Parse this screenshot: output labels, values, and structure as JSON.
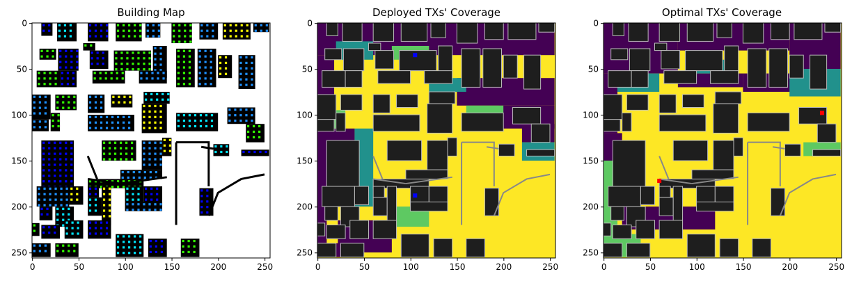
{
  "figure": {
    "background": "#ffffff"
  },
  "chart_data": [
    {
      "type": "heatmap",
      "title": "Building Map",
      "xlabel": "",
      "ylabel": "",
      "xlim": [
        0,
        255
      ],
      "ylim": [
        255,
        0
      ],
      "xticks": [
        0,
        50,
        100,
        150,
        200,
        250
      ],
      "yticks": [
        0,
        50,
        100,
        150,
        200,
        250
      ],
      "legend": "none",
      "background_color": "#ffffff",
      "building_color": "#000000",
      "marker_colors": [
        "#0000ff",
        "#1e90ff",
        "#00e5ff",
        "#33ff00",
        "#ffff00"
      ],
      "buildings": [
        [
          10,
          0,
          22,
          14
        ],
        [
          27,
          0,
          48,
          20
        ],
        [
          60,
          0,
          82,
          20
        ],
        [
          90,
          0,
          118,
          20
        ],
        [
          122,
          0,
          138,
          16
        ],
        [
          150,
          0,
          172,
          22
        ],
        [
          180,
          0,
          200,
          18
        ],
        [
          205,
          0,
          235,
          18
        ],
        [
          238,
          0,
          255,
          10
        ],
        [
          8,
          28,
          26,
          40
        ],
        [
          28,
          28,
          50,
          52
        ],
        [
          55,
          22,
          68,
          30
        ],
        [
          62,
          30,
          82,
          50
        ],
        [
          88,
          30,
          128,
          52
        ],
        [
          130,
          25,
          145,
          60
        ],
        [
          155,
          28,
          175,
          70
        ],
        [
          178,
          28,
          198,
          70
        ],
        [
          200,
          35,
          215,
          60
        ],
        [
          222,
          35,
          240,
          72
        ],
        [
          5,
          52,
          30,
          70
        ],
        [
          30,
          52,
          48,
          70
        ],
        [
          65,
          52,
          100,
          66
        ],
        [
          115,
          52,
          145,
          66
        ],
        [
          0,
          78,
          20,
          105
        ],
        [
          25,
          78,
          48,
          95
        ],
        [
          60,
          78,
          78,
          98
        ],
        [
          85,
          78,
          108,
          92
        ],
        [
          120,
          75,
          148,
          88
        ],
        [
          0,
          105,
          18,
          118
        ],
        [
          20,
          98,
          30,
          118
        ],
        [
          60,
          100,
          110,
          118
        ],
        [
          118,
          88,
          145,
          120
        ],
        [
          155,
          98,
          200,
          118
        ],
        [
          210,
          92,
          240,
          110
        ],
        [
          230,
          110,
          250,
          130
        ],
        [
          10,
          128,
          45,
          185
        ],
        [
          75,
          128,
          112,
          150
        ],
        [
          118,
          128,
          140,
          160
        ],
        [
          140,
          125,
          150,
          145
        ],
        [
          195,
          132,
          212,
          145
        ],
        [
          225,
          138,
          255,
          145
        ],
        [
          60,
          170,
          120,
          180
        ],
        [
          95,
          160,
          140,
          170
        ],
        [
          5,
          178,
          40,
          200
        ],
        [
          40,
          178,
          55,
          198
        ],
        [
          8,
          200,
          22,
          215
        ],
        [
          25,
          200,
          45,
          222
        ],
        [
          60,
          178,
          72,
          190
        ],
        [
          60,
          190,
          75,
          210
        ],
        [
          75,
          178,
          85,
          220
        ],
        [
          100,
          178,
          120,
          195
        ],
        [
          120,
          178,
          140,
          200
        ],
        [
          100,
          195,
          140,
          205
        ],
        [
          180,
          180,
          195,
          210
        ],
        [
          0,
          218,
          8,
          232
        ],
        [
          10,
          220,
          30,
          235
        ],
        [
          35,
          215,
          55,
          235
        ],
        [
          60,
          215,
          85,
          235
        ],
        [
          0,
          240,
          20,
          255
        ],
        [
          25,
          240,
          50,
          255
        ],
        [
          90,
          230,
          120,
          255
        ],
        [
          125,
          235,
          145,
          255
        ],
        [
          160,
          235,
          180,
          255
        ]
      ],
      "walls": [
        [
          [
            155,
            130
          ],
          [
            190,
            130
          ],
          [
            190,
            178
          ]
        ],
        [
          [
            155,
            130
          ],
          [
            155,
            220
          ]
        ],
        [
          [
            95,
            175
          ],
          [
            145,
            168
          ]
        ],
        [
          [
            60,
            145
          ],
          [
            70,
            170
          ]
        ],
        [
          [
            60,
            170
          ],
          [
            95,
            175
          ]
        ],
        [
          [
            190,
            210
          ],
          [
            200,
            185
          ],
          [
            225,
            170
          ],
          [
            250,
            165
          ]
        ],
        [
          [
            182,
            135
          ],
          [
            195,
            137
          ]
        ]
      ]
    },
    {
      "type": "heatmap",
      "title": "Deployed TXs' Coverage",
      "xlabel": "",
      "ylabel": "",
      "xlim": [
        0,
        255
      ],
      "ylim": [
        255,
        0
      ],
      "xticks": [
        0,
        50,
        100,
        150,
        200,
        250
      ],
      "yticks": [
        0,
        50,
        100,
        150,
        200,
        250
      ],
      "legend": "none",
      "colormap": "viridis-like (dark purple = no coverage, teal, green, yellow = covered)",
      "covered_color": "#fde725",
      "uncovered_color": "#440154",
      "mid_colors": [
        "#21918c",
        "#5ec962"
      ],
      "building_color": "#1e1e1e",
      "transmitters": [
        {
          "x": 105,
          "y": 35,
          "color": "#0000ff"
        },
        {
          "x": 105,
          "y": 188,
          "color": "#0000ff"
        }
      ],
      "uncovered_regions": [
        [
          0,
          0,
          255,
          35
        ],
        [
          0,
          35,
          18,
          110
        ],
        [
          0,
          115,
          40,
          200
        ],
        [
          0,
          200,
          10,
          255
        ],
        [
          150,
          60,
          255,
          90
        ],
        [
          195,
          90,
          255,
          115
        ],
        [
          220,
          110,
          255,
          130
        ],
        [
          22,
          215,
          80,
          250
        ],
        [
          0,
          240,
          30,
          255
        ]
      ],
      "mid_regions": [
        [
          20,
          20,
          60,
          40
        ],
        [
          80,
          25,
          120,
          40
        ],
        [
          120,
          60,
          160,
          75
        ],
        [
          160,
          90,
          200,
          105
        ],
        [
          40,
          115,
          60,
          200
        ],
        [
          10,
          95,
          30,
          115
        ],
        [
          220,
          130,
          255,
          150
        ],
        [
          80,
          200,
          120,
          222
        ]
      ]
    },
    {
      "type": "heatmap",
      "title": "Optimal TXs' Coverage",
      "xlabel": "",
      "ylabel": "",
      "xlim": [
        0,
        255
      ],
      "ylim": [
        255,
        0
      ],
      "xticks": [
        0,
        50,
        100,
        150,
        200,
        250
      ],
      "yticks": [
        0,
        50,
        100,
        150,
        200,
        250
      ],
      "legend": "none",
      "colormap": "viridis-like (dark purple = no coverage, teal, green, yellow = covered)",
      "covered_color": "#fde725",
      "uncovered_color": "#440154",
      "mid_colors": [
        "#21918c",
        "#5ec962"
      ],
      "building_color": "#1e1e1e",
      "transmitters": [
        {
          "x": 60,
          "y": 172,
          "color": "#ff0000"
        },
        {
          "x": 235,
          "y": 98,
          "color": "#ff0000"
        }
      ],
      "uncovered_regions": [
        [
          0,
          0,
          80,
          55
        ],
        [
          80,
          0,
          200,
          30
        ],
        [
          200,
          0,
          255,
          50
        ],
        [
          0,
          55,
          15,
          120
        ],
        [
          0,
          120,
          20,
          150
        ],
        [
          80,
          55,
          150,
          70
        ],
        [
          150,
          55,
          220,
          75
        ],
        [
          20,
          200,
          120,
          225
        ],
        [
          0,
          200,
          10,
          230
        ]
      ],
      "mid_regions": [
        [
          15,
          55,
          60,
          75
        ],
        [
          0,
          150,
          15,
          250
        ],
        [
          200,
          50,
          255,
          80
        ],
        [
          215,
          130,
          255,
          145
        ],
        [
          100,
          40,
          130,
          55
        ],
        [
          0,
          230,
          40,
          255
        ]
      ]
    }
  ]
}
